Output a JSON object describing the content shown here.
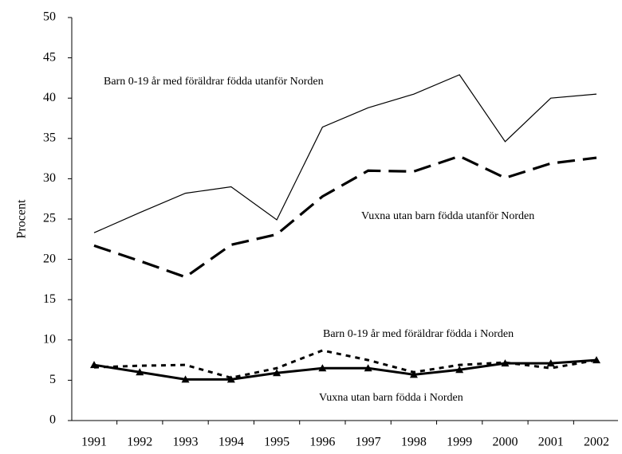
{
  "chart_data": {
    "type": "line",
    "y_label": "Procent",
    "categories": [
      "1991",
      "1992",
      "1993",
      "1994",
      "1995",
      "1996",
      "1997",
      "1998",
      "1999",
      "2000",
      "2001",
      "2002"
    ],
    "ylim": [
      0,
      50
    ],
    "yticks": [
      0,
      5,
      10,
      15,
      20,
      25,
      30,
      35,
      40,
      45,
      50
    ],
    "series": [
      {
        "name": "Barn 0-19 år med föräldrar födda utanför Norden",
        "color": "#000000",
        "line_style": "thin",
        "values": [
          23.3,
          25.8,
          28.2,
          29.0,
          24.9,
          36.4,
          38.8,
          40.5,
          42.9,
          34.6,
          40.0,
          40.5
        ]
      },
      {
        "name": "Vuxna utan barn födda utanför Norden",
        "color": "#000000",
        "line_style": "dashed",
        "values": [
          21.7,
          19.8,
          17.8,
          21.8,
          23.1,
          27.8,
          31.0,
          30.9,
          32.8,
          30.1,
          31.9,
          32.6
        ]
      },
      {
        "name": "Barn 0-19 år med föräldrar födda i Norden",
        "color": "#000000",
        "line_style": "dotted",
        "values": [
          6.6,
          6.8,
          6.9,
          5.3,
          6.5,
          8.7,
          7.5,
          6.0,
          6.9,
          7.2,
          6.5,
          7.5
        ]
      },
      {
        "name": "Vuxna utan barn födda i Norden",
        "color": "#000000",
        "line_style": "solid",
        "marker": "triangle",
        "values": [
          6.9,
          6.0,
          5.1,
          5.1,
          5.9,
          6.5,
          6.5,
          5.7,
          6.3,
          7.1,
          7.1,
          7.5
        ]
      }
    ]
  }
}
